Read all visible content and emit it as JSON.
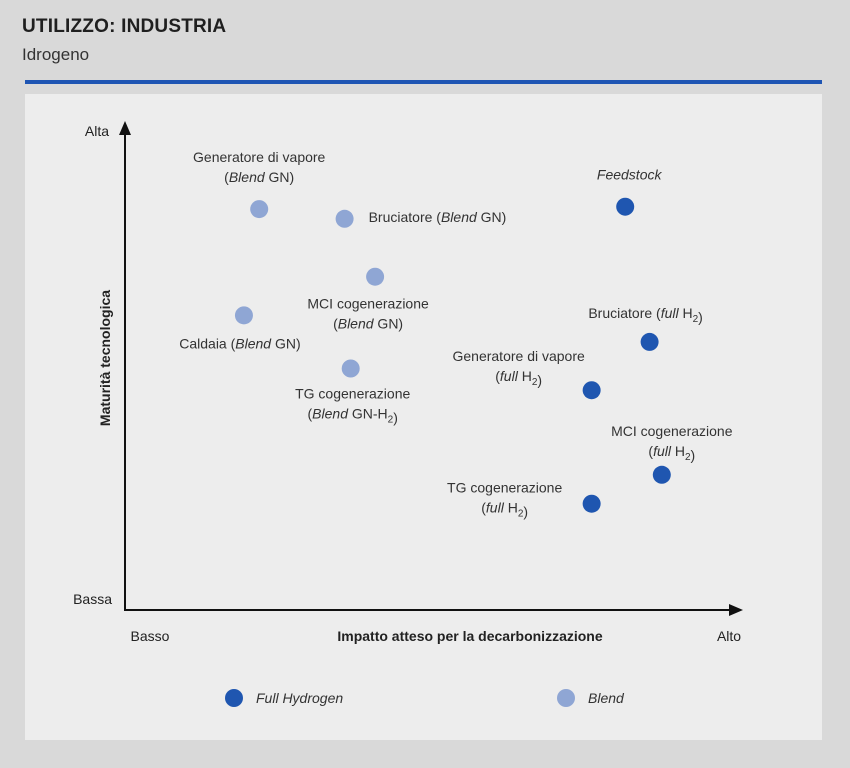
{
  "header": {
    "title": "UTILIZZO: INDUSTRIA",
    "subtitle": "Idrogeno"
  },
  "colors": {
    "full": "#1f56b0",
    "blend": "#8fa6d4",
    "rule": "#1e55b3"
  },
  "chart_data": {
    "type": "scatter",
    "xlabel": "Impatto atteso per la decarbonizzazione",
    "ylabel": "Maturità tecnologica",
    "x_ticks": {
      "low": "Basso",
      "high": "Alto"
    },
    "y_ticks": {
      "low": "Bassa",
      "high": "Alta"
    },
    "xlim": [
      0,
      100
    ],
    "ylim": [
      0,
      100
    ],
    "legend": {
      "position": "bottom",
      "items": [
        {
          "name": "Full Hydrogen",
          "series": "full"
        },
        {
          "name": "Blend",
          "series": "blend"
        }
      ]
    },
    "points": [
      {
        "series": "blend",
        "x": 22,
        "y": 83,
        "label_lines": [
          [
            {
              "t": "Generatore di vapore"
            }
          ],
          [
            {
              "t": "(",
              "i": false
            },
            {
              "t": "Blend",
              "i": true
            },
            {
              "t": " GN)"
            }
          ]
        ]
      },
      {
        "series": "blend",
        "x": 36,
        "y": 81,
        "label_lines": [
          [
            {
              "t": "Bruciatore ("
            },
            {
              "t": "Blend",
              "i": true
            },
            {
              "t": " GN)"
            }
          ]
        ]
      },
      {
        "series": "blend",
        "x": 41,
        "y": 69,
        "label_lines": [
          [
            {
              "t": "MCI cogenerazione"
            }
          ],
          [
            {
              "t": "("
            },
            {
              "t": "Blend",
              "i": true
            },
            {
              "t": " GN)"
            }
          ]
        ]
      },
      {
        "series": "blend",
        "x": 19.5,
        "y": 61,
        "label_lines": [
          [
            {
              "t": "Caldaia ("
            },
            {
              "t": "Blend",
              "i": true
            },
            {
              "t": " GN)"
            }
          ]
        ]
      },
      {
        "series": "blend",
        "x": 37,
        "y": 50,
        "label_lines": [
          [
            {
              "t": "TG cogenerazione"
            }
          ],
          [
            {
              "t": "("
            },
            {
              "t": "Blend",
              "i": true
            },
            {
              "t": " GN-H"
            },
            {
              "t": "2",
              "sub": true
            },
            {
              "t": ")"
            }
          ]
        ]
      },
      {
        "series": "full",
        "x": 82,
        "y": 83.5,
        "label_lines": [
          [
            {
              "t": "Feedstock",
              "i": true
            }
          ]
        ]
      },
      {
        "series": "full",
        "x": 86,
        "y": 55.5,
        "label_lines": [
          [
            {
              "t": "Bruciatore ("
            },
            {
              "t": "full",
              "i": true
            },
            {
              "t": " H"
            },
            {
              "t": "2",
              "sub": true
            },
            {
              "t": ")"
            }
          ]
        ]
      },
      {
        "series": "full",
        "x": 76.5,
        "y": 45.5,
        "label_lines": [
          [
            {
              "t": "Generatore di vapore"
            }
          ],
          [
            {
              "t": "("
            },
            {
              "t": "full",
              "i": true
            },
            {
              "t": " H"
            },
            {
              "t": "2",
              "sub": true
            },
            {
              "t": ")"
            }
          ]
        ]
      },
      {
        "series": "full",
        "x": 88,
        "y": 28,
        "label_lines": [
          [
            {
              "t": "MCI cogenerazione"
            }
          ],
          [
            {
              "t": "("
            },
            {
              "t": "full",
              "i": true
            },
            {
              "t": " H"
            },
            {
              "t": "2",
              "sub": true
            },
            {
              "t": ")"
            }
          ]
        ]
      },
      {
        "series": "full",
        "x": 76.5,
        "y": 22,
        "label_lines": [
          [
            {
              "t": "TG cogenerazione"
            }
          ],
          [
            {
              "t": "("
            },
            {
              "t": "full",
              "i": true
            },
            {
              "t": " H"
            },
            {
              "t": "2",
              "sub": true
            },
            {
              "t": ")"
            }
          ]
        ]
      }
    ]
  }
}
